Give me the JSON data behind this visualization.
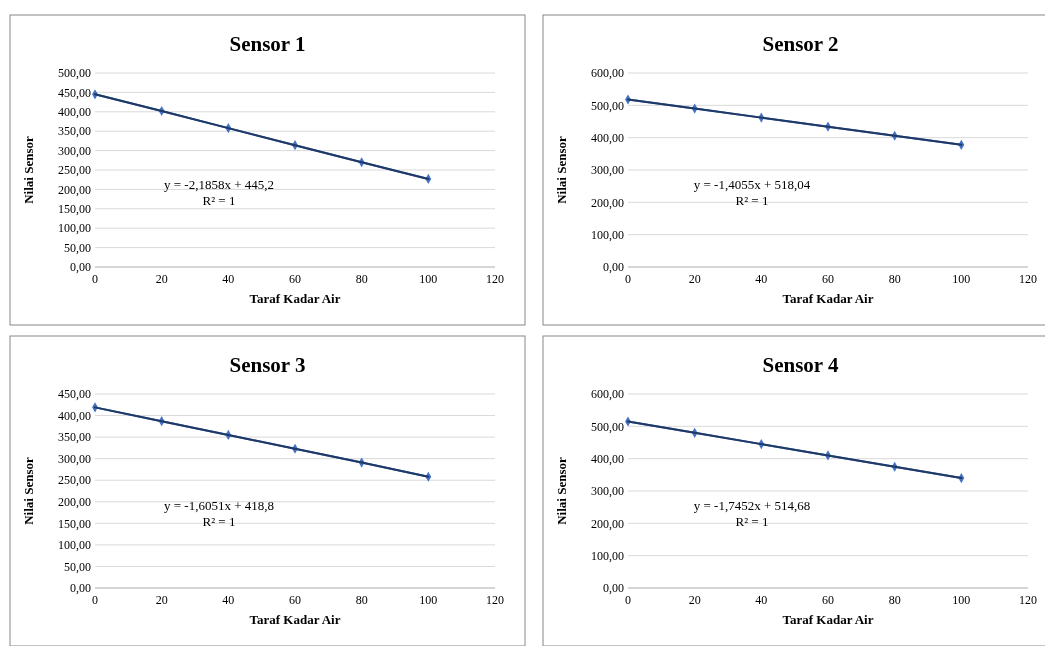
{
  "chart_data": [
    {
      "type": "line",
      "title": "Sensor 1",
      "xlabel": "Taraf Kadar Air",
      "ylabel": "Nilai Sensor",
      "x": [
        0,
        20,
        40,
        60,
        80,
        100
      ],
      "xlim": [
        0,
        120
      ],
      "xticks": [
        0,
        20,
        40,
        60,
        80,
        100,
        120
      ],
      "ylim": [
        0,
        500
      ],
      "yticks": [
        {
          "value": 0,
          "label": "0,00"
        },
        {
          "value": 50,
          "label": "50,00"
        },
        {
          "value": 100,
          "label": "100,00"
        },
        {
          "value": 150,
          "label": "150,00"
        },
        {
          "value": 200,
          "label": "200,00"
        },
        {
          "value": 250,
          "label": "250,00"
        },
        {
          "value": 300,
          "label": "300,00"
        },
        {
          "value": 350,
          "label": "350,00"
        },
        {
          "value": 400,
          "label": "400,00"
        },
        {
          "value": 450,
          "label": "450,00"
        },
        {
          "value": 500,
          "label": "500,00"
        }
      ],
      "grid": "y",
      "annotations": [
        "y = -2,1858x + 445,2",
        "R² = 1"
      ],
      "series": [
        {
          "color": "#4472c4",
          "values": [
            445,
            402,
            358,
            314,
            270,
            227
          ],
          "marker": "diamond"
        },
        {
          "color": "#1f3864",
          "values": [
            445,
            402,
            358,
            314,
            270,
            227
          ],
          "marker": "none"
        }
      ]
    },
    {
      "type": "line",
      "title": "Sensor 2",
      "xlabel": "Taraf Kadar Air",
      "ylabel": "Nilai Sensor",
      "x": [
        0,
        20,
        40,
        60,
        80,
        100
      ],
      "xlim": [
        0,
        120
      ],
      "xticks": [
        0,
        20,
        40,
        60,
        80,
        100,
        120
      ],
      "ylim": [
        0,
        600
      ],
      "yticks": [
        {
          "value": 0,
          "label": "0,00"
        },
        {
          "value": 100,
          "label": "100,00"
        },
        {
          "value": 200,
          "label": "200,00"
        },
        {
          "value": 300,
          "label": "300,00"
        },
        {
          "value": 400,
          "label": "400,00"
        },
        {
          "value": 500,
          "label": "500,00"
        },
        {
          "value": 600,
          "label": "600,00"
        }
      ],
      "grid": "y",
      "annotations": [
        "y = -1,4055x + 518,04",
        "R² = 1"
      ],
      "series": [
        {
          "color": "#4472c4",
          "values": [
            518,
            490,
            462,
            434,
            406,
            378
          ],
          "marker": "diamond"
        },
        {
          "color": "#1f3864",
          "values": [
            518,
            490,
            462,
            434,
            406,
            378
          ],
          "marker": "none"
        }
      ]
    },
    {
      "type": "line",
      "title": "Sensor 3",
      "xlabel": "Taraf Kadar Air",
      "ylabel": "Nilai Sensor",
      "x": [
        0,
        20,
        40,
        60,
        80,
        100
      ],
      "xlim": [
        0,
        120
      ],
      "xticks": [
        0,
        20,
        40,
        60,
        80,
        100,
        120
      ],
      "ylim": [
        0,
        450
      ],
      "yticks": [
        {
          "value": 0,
          "label": "0,00"
        },
        {
          "value": 50,
          "label": "50,00"
        },
        {
          "value": 100,
          "label": "100,00"
        },
        {
          "value": 150,
          "label": "150,00"
        },
        {
          "value": 200,
          "label": "200,00"
        },
        {
          "value": 250,
          "label": "250,00"
        },
        {
          "value": 300,
          "label": "300,00"
        },
        {
          "value": 350,
          "label": "350,00"
        },
        {
          "value": 400,
          "label": "400,00"
        },
        {
          "value": 450,
          "label": "450,00"
        }
      ],
      "grid": "y",
      "annotations": [
        "y = -1,6051x + 418,8",
        "R² = 1"
      ],
      "series": [
        {
          "color": "#4472c4",
          "values": [
            419,
            387,
            355,
            323,
            291,
            258
          ],
          "marker": "diamond"
        },
        {
          "color": "#1f3864",
          "values": [
            419,
            387,
            355,
            323,
            291,
            258
          ],
          "marker": "none"
        }
      ]
    },
    {
      "type": "line",
      "title": "Sensor 4",
      "xlabel": "Taraf Kadar Air",
      "ylabel": "Nilai Sensor",
      "x": [
        0,
        20,
        40,
        60,
        80,
        100
      ],
      "xlim": [
        0,
        120
      ],
      "xticks": [
        0,
        20,
        40,
        60,
        80,
        100,
        120
      ],
      "ylim": [
        0,
        600
      ],
      "yticks": [
        {
          "value": 0,
          "label": "0,00"
        },
        {
          "value": 100,
          "label": "100,00"
        },
        {
          "value": 200,
          "label": "200,00"
        },
        {
          "value": 300,
          "label": "300,00"
        },
        {
          "value": 400,
          "label": "400,00"
        },
        {
          "value": 500,
          "label": "500,00"
        },
        {
          "value": 600,
          "label": "600,00"
        }
      ],
      "grid": "y",
      "annotations": [
        "y = -1,7452x + 514,68",
        "R² = 1"
      ],
      "series": [
        {
          "color": "#4472c4",
          "values": [
            515,
            480,
            445,
            410,
            375,
            340
          ],
          "marker": "diamond"
        },
        {
          "color": "#1f3864",
          "values": [
            515,
            480,
            445,
            410,
            375,
            340
          ],
          "marker": "none"
        }
      ]
    }
  ]
}
